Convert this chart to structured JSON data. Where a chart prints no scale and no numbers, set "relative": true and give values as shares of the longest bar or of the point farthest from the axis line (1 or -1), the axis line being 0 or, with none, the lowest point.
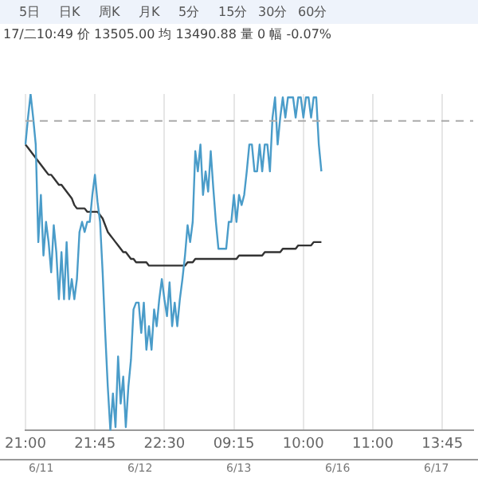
{
  "chart_data": {
    "type": "line",
    "relative": true,
    "title": "17/二10:49 价 13505.00 均 13490.88 量 0 幅 -0.07%",
    "annotations": [
      "5日",
      "日K",
      "周K",
      "月K",
      "5分",
      "15分",
      "30分",
      "60分",
      "6/11",
      "6/12",
      "6/13",
      "6/16",
      "6/17"
    ],
    "categories": [
      "21:00",
      null,
      null,
      null,
      null,
      null,
      null,
      null,
      null,
      null,
      null,
      null,
      null,
      null,
      null,
      null,
      null,
      null,
      null,
      null,
      null,
      null,
      null,
      null,
      null,
      null,
      null,
      "21:45",
      null,
      null,
      null,
      null,
      null,
      null,
      null,
      null,
      null,
      null,
      null,
      null,
      null,
      null,
      null,
      null,
      null,
      null,
      null,
      null,
      null,
      null,
      null,
      null,
      null,
      null,
      "22:30",
      null,
      null,
      null,
      null,
      null,
      null,
      null,
      null,
      null,
      null,
      null,
      null,
      null,
      null,
      null,
      null,
      null,
      null,
      null,
      null,
      null,
      null,
      null,
      null,
      null,
      null,
      "09:15",
      null,
      null,
      null,
      null,
      null,
      null,
      null,
      null,
      null,
      null,
      null,
      null,
      null,
      null,
      null,
      null,
      null,
      null,
      null,
      null,
      null,
      null,
      null,
      null,
      null,
      null,
      "10:00",
      null,
      null,
      null,
      null,
      null,
      null,
      null,
      null,
      null,
      null,
      null,
      null,
      null,
      null,
      null,
      null,
      null,
      null,
      null,
      null,
      null,
      null,
      null,
      null,
      null,
      null,
      "11:00",
      null,
      null,
      null,
      null,
      null,
      null,
      null,
      null,
      null,
      null,
      null,
      null,
      null,
      null,
      null,
      null,
      null,
      null,
      null,
      null,
      null,
      null,
      null,
      null,
      null,
      null,
      "13:45",
      null,
      null,
      null,
      null,
      null,
      null,
      null,
      null,
      null,
      null,
      null,
      null
    ],
    "series": [
      {
        "color": "#4a9cc9",
        "values": [
          0.85,
          0.93,
          1,
          0.93,
          0.85,
          0.56,
          0.7,
          0.52,
          0.62,
          0.56,
          0.47,
          0.61,
          0.53,
          0.39,
          0.53,
          0.39,
          0.56,
          0.39,
          0.45,
          0.39,
          0.45,
          0.59,
          0.62,
          0.59,
          0.62,
          0.62,
          0.7,
          0.76,
          0.68,
          0.62,
          0.47,
          0.29,
          0.13,
          0,
          0.11,
          0.01,
          0.22,
          0.08,
          0.16,
          0.01,
          0.13,
          0.21,
          0.36,
          0.38,
          0.38,
          0.29,
          0.38,
          0.24,
          0.31,
          0.24,
          0.36,
          0.31,
          0.39,
          0.45,
          0.39,
          0.34,
          0.44,
          0.31,
          0.38,
          0.31,
          0.39,
          0.45,
          0.52,
          0.61,
          0.56,
          0.62,
          0.83,
          0.77,
          0.85,
          0.7,
          0.77,
          0.71,
          0.83,
          0.72,
          0.62,
          0.54,
          0.54,
          0.54,
          0.54,
          0.62,
          0.62,
          0.7,
          0.62,
          0.7,
          0.67,
          0.7,
          0.77,
          0.85,
          0.85,
          0.77,
          0.77,
          0.85,
          0.77,
          0.85,
          0.85,
          0.77,
          0.93,
          0.99,
          0.85,
          0.93,
          0.99,
          0.93,
          0.99,
          0.99,
          0.99,
          0.93,
          0.99,
          0.99,
          0.93,
          0.99,
          0.99,
          0.93,
          0.99,
          0.99,
          0.85,
          0.77,
          null,
          null,
          null,
          null,
          null,
          null,
          null,
          null,
          null,
          null,
          null,
          null,
          null,
          null,
          null,
          null,
          null,
          null,
          null,
          null,
          null,
          null,
          null,
          null,
          null,
          null,
          null,
          null,
          null,
          null,
          null,
          null,
          null,
          null,
          null,
          null,
          null,
          null,
          null,
          null,
          null,
          null,
          null,
          null,
          null,
          null,
          null,
          null,
          null,
          null,
          null,
          null,
          null,
          null,
          null,
          null,
          null,
          null,
          null
        ]
      },
      {
        "color": "#333333",
        "values": [
          0.85,
          0.84,
          0.83,
          0.82,
          0.81,
          0.8,
          0.79,
          0.78,
          0.77,
          0.76,
          0.76,
          0.75,
          0.74,
          0.73,
          0.73,
          0.72,
          0.71,
          0.7,
          0.69,
          0.67,
          0.66,
          0.66,
          0.66,
          0.66,
          0.65,
          0.65,
          0.65,
          0.65,
          0.65,
          0.64,
          0.63,
          0.61,
          0.59,
          0.58,
          0.57,
          0.56,
          0.55,
          0.54,
          0.53,
          0.53,
          0.52,
          0.51,
          0.51,
          0.5,
          0.5,
          0.5,
          0.5,
          0.5,
          0.49,
          0.49,
          0.49,
          0.49,
          0.49,
          0.49,
          0.49,
          0.49,
          0.49,
          0.49,
          0.49,
          0.49,
          0.49,
          0.49,
          0.49,
          0.5,
          0.5,
          0.5,
          0.51,
          0.51,
          0.51,
          0.51,
          0.51,
          0.51,
          0.51,
          0.51,
          0.51,
          0.51,
          0.51,
          0.51,
          0.51,
          0.51,
          0.51,
          0.51,
          0.51,
          0.52,
          0.52,
          0.52,
          0.52,
          0.52,
          0.52,
          0.52,
          0.52,
          0.52,
          0.52,
          0.53,
          0.53,
          0.53,
          0.53,
          0.53,
          0.53,
          0.53,
          0.54,
          0.54,
          0.54,
          0.54,
          0.54,
          0.54,
          0.55,
          0.55,
          0.55,
          0.55,
          0.55,
          0.55,
          0.56,
          0.56,
          0.56,
          0.56,
          null,
          null,
          null,
          null,
          null,
          null,
          null,
          null,
          null,
          null,
          null,
          null,
          null,
          null,
          null,
          null,
          null,
          null,
          null,
          null,
          null,
          null,
          null,
          null,
          null,
          null,
          null,
          null,
          null,
          null,
          null,
          null,
          null,
          null,
          null,
          null,
          null,
          null,
          null,
          null,
          null,
          null,
          null,
          null,
          null,
          null,
          null,
          null,
          null,
          null,
          null,
          null,
          null,
          null,
          null,
          null,
          null,
          null,
          null
        ]
      }
    ],
    "ref_lines": [
      {
        "axis": "y",
        "value": 0.92,
        "color": "#aaaaaa",
        "line_style": "dashed"
      }
    ],
    "grid": "x",
    "legend": false,
    "tick_labels": "x",
    "marker": "none",
    "line_style": "solid"
  }
}
